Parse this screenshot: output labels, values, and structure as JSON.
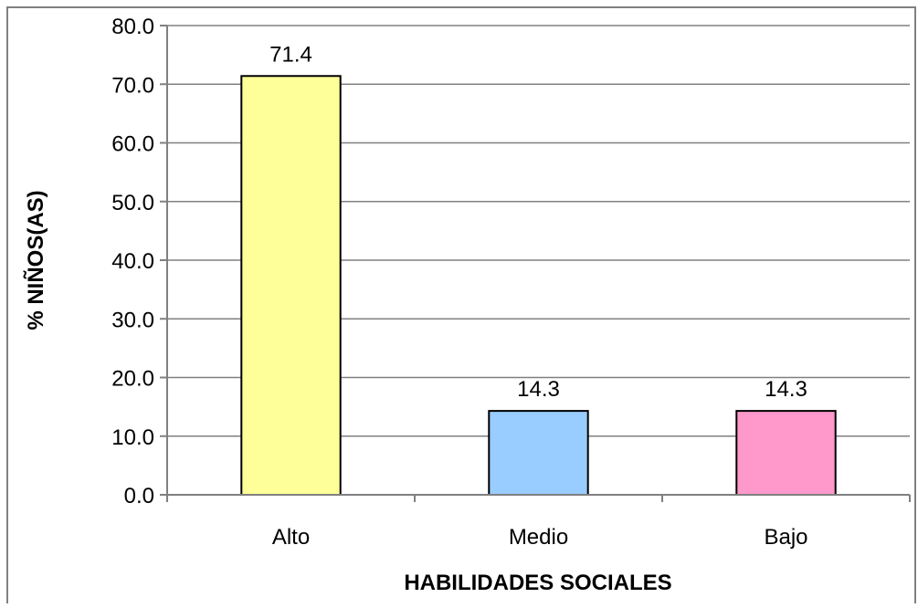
{
  "chart_data": {
    "type": "bar",
    "categories": [
      "Alto",
      "Medio",
      "Bajo"
    ],
    "values": [
      71.4,
      14.3,
      14.3
    ],
    "data_labels": [
      "71.4",
      "14.3",
      "14.3"
    ],
    "bar_colors": [
      "#ffff99",
      "#99ccff",
      "#ff99cc"
    ],
    "xlabel": "HABILIDADES SOCIALES",
    "ylabel": "% NIÑOS(AS)",
    "ylim": [
      0,
      80
    ],
    "yticks": [
      "0.0",
      "10.0",
      "20.0",
      "30.0",
      "40.0",
      "50.0",
      "60.0",
      "70.0",
      "80.0"
    ],
    "grid": true,
    "legend": "none"
  },
  "colors": {
    "gridline": "#808080",
    "bar_outline": "#000000",
    "frame": "#808080"
  }
}
